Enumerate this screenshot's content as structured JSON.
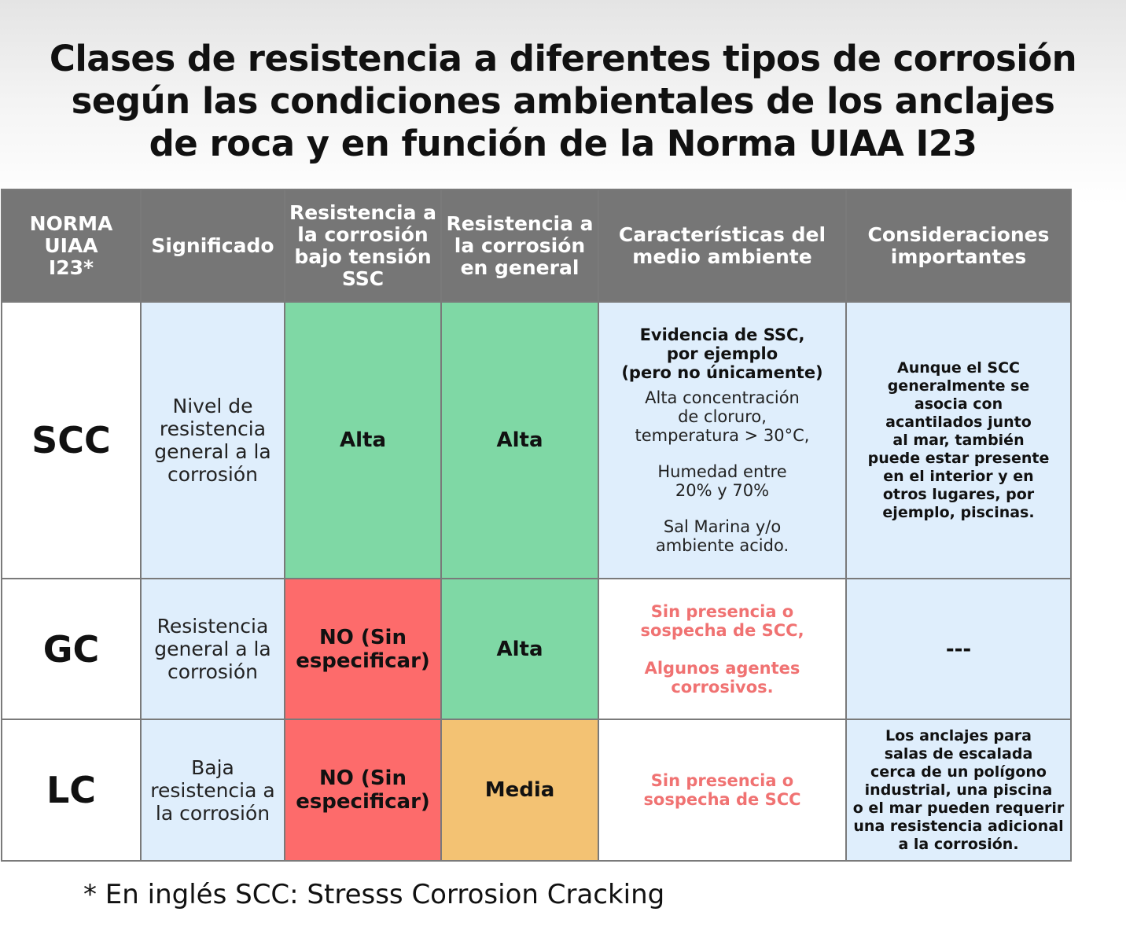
{
  "title": {
    "line1": "Clases de resistencia a diferentes tipos de corrosión",
    "line2": "según las condiciones ambientales de los anclajes",
    "line3": "de roca y en función de la Norma UIAA I23"
  },
  "headers": {
    "norma": "NORMA\nUIAA\nI23*",
    "significado": "Significado",
    "ssc": "Resistencia a\nla corrosión\nbajo tensión\nSSC",
    "general": "Resistencia a\nla corrosión\nen general",
    "caracteristicas": "Características del\nmedio ambiente",
    "consideraciones": "Consideraciones\nimportantes"
  },
  "rows": {
    "scc": {
      "code": "SCC",
      "significado": "Nivel de\nresistencia\ngeneral a la\ncorrosión",
      "ssc": "Alta",
      "general": "Alta",
      "env_bold": "Evidencia de SSC,\npor ejemplo\n(pero no únicamente)",
      "env_1": "Alta concentración\nde cloruro,\ntemperatura > 30°C,",
      "env_2": "Humedad entre\n20% y 70%",
      "env_3": "Sal Marina y/o\nambiente acido.",
      "consideraciones": "Aunque el SCC\ngeneralmente se\nasocia con\nacantilados junto\nal mar, también\npuede estar presente\nen el interior y en\notros lugares, por\nejemplo, piscinas."
    },
    "gc": {
      "code": "GC",
      "significado": "Resistencia\ngeneral a la\ncorrosión",
      "ssc": "NO (Sin\nespecificar)",
      "general": "Alta",
      "env_1": "Sin presencia o\nsospecha de SCC,",
      "env_2": "Algunos agentes\ncorrosivos.",
      "consideraciones": "---"
    },
    "lc": {
      "code": "LC",
      "significado": "Baja\nresistencia a\nla corrosión",
      "ssc": "NO (Sin\nespecificar)",
      "general": "Media",
      "env_1": "Sin presencia o\nsospecha de SCC",
      "consideraciones": "Los anclajes para\nsalas de escalada\ncerca de un polígono\nindustrial, una piscina\no el mar pueden requerir\nuna resistencia adicional\na la corrosión."
    }
  },
  "footnote": "* En inglés SCC: Stresss Corrosion Cracking",
  "colors": {
    "header_bg": "#767676",
    "alta_green": "#7fd8a5",
    "no_red": "#fd6b6b",
    "media_orange": "#f3c273",
    "light_blue": "#dfeefc",
    "warning_text": "#f07272"
  }
}
